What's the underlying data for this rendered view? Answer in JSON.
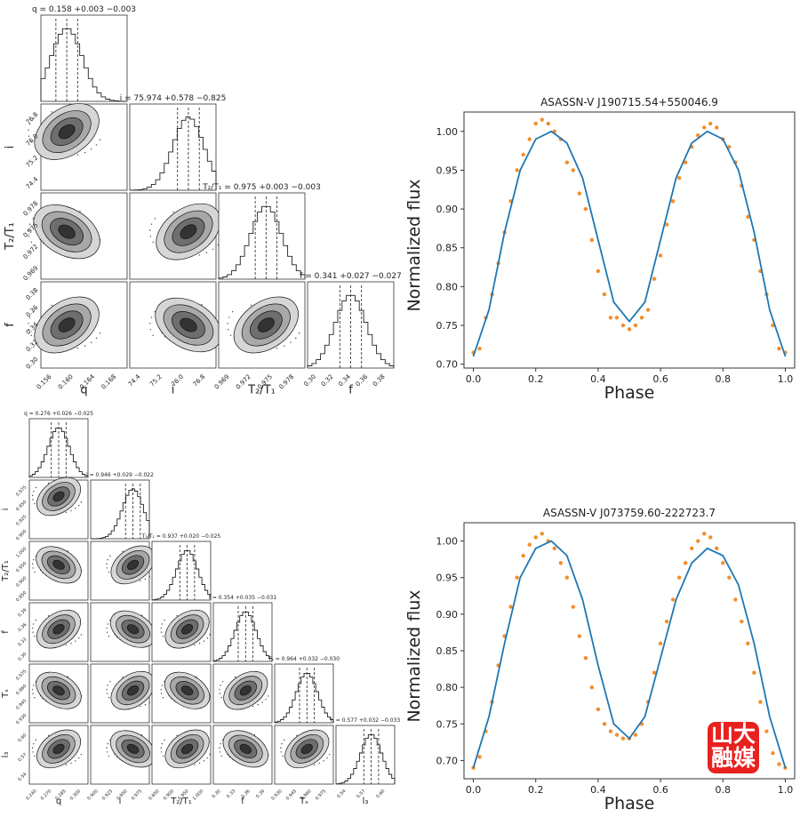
{
  "corners": [
    {
      "params": [
        "q",
        "i",
        "T2/T1",
        "f"
      ],
      "axis_labels": [
        "q",
        "i",
        "T₂/T₁",
        "f"
      ],
      "titles": [
        "q = 0.158 +0.003 −0.003",
        "i = 75.974 +0.578 −0.825",
        "T₂/T₁ = 0.975 +0.003 −0.003",
        "f = 0.341 +0.027 −0.027"
      ],
      "ticks": [
        [
          "0.156",
          "0.160",
          "0.164",
          "0.168"
        ],
        [
          "74.4",
          "75.2",
          "76.0",
          "76.8"
        ],
        [
          "0.969",
          "0.972",
          "0.975",
          "0.978"
        ],
        [
          "0.30",
          "0.32",
          "0.34",
          "0.36",
          "0.38"
        ]
      ],
      "centers": [
        0.3,
        0.68,
        0.55,
        0.5
      ]
    },
    {
      "params": [
        "q",
        "i",
        "T2/T1",
        "f",
        "Ts",
        "l3"
      ],
      "axis_labels": [
        "q",
        "i",
        "T₂/T₁",
        "f",
        "Tₛ",
        "l₃"
      ],
      "titles": [
        "q = 0.276 +0.026 −0.025",
        "i = 0.946 +0.029 −0.022",
        "T₂/T₁ = 0.937 +0.020 −0.025",
        "f = 0.354 +0.035 −0.031",
        "Tₛ = 0.964 +0.032 −0.030",
        "l₃ = 0.577 +0.032 −0.033"
      ],
      "ticks": [
        [
          "0.240",
          "0.270",
          "0.285",
          "0.300"
        ],
        [
          "0.900",
          "0.925",
          "0.950",
          "0.975"
        ],
        [
          "0.850",
          "0.900",
          "0.950",
          "1.000"
        ],
        [
          "0.30",
          "0.33",
          "0.36",
          "0.39"
        ],
        [
          "0.930",
          "0.945",
          "0.960",
          "0.975"
        ],
        [
          "0.54",
          "0.57",
          "0.60"
        ]
      ],
      "centers": [
        0.5,
        0.72,
        0.6,
        0.55,
        0.55,
        0.6
      ]
    }
  ],
  "chart_data": [
    {
      "type": "scatter",
      "title": "ASASSN-V J190715.54+550046.9",
      "xlabel": "Phase",
      "ylabel": "Normalized flux",
      "xlim": [
        -0.03,
        1.03
      ],
      "ylim": [
        0.695,
        1.025
      ],
      "xticks": [
        "0.0",
        "0.2",
        "0.4",
        "0.6",
        "0.8",
        "1.0"
      ],
      "yticks": [
        "0.70",
        "0.75",
        "0.80",
        "0.85",
        "0.90",
        "0.95",
        "1.00"
      ],
      "series": [
        {
          "kind": "points",
          "color": "#f28e2b",
          "x": [
            0.0,
            0.02,
            0.04,
            0.06,
            0.08,
            0.1,
            0.12,
            0.14,
            0.16,
            0.18,
            0.2,
            0.22,
            0.24,
            0.26,
            0.28,
            0.3,
            0.32,
            0.34,
            0.36,
            0.38,
            0.4,
            0.42,
            0.44,
            0.46,
            0.48,
            0.5,
            0.52,
            0.54,
            0.56,
            0.58,
            0.6,
            0.62,
            0.64,
            0.66,
            0.68,
            0.7,
            0.72,
            0.74,
            0.76,
            0.78,
            0.8,
            0.82,
            0.84,
            0.86,
            0.88,
            0.9,
            0.92,
            0.94,
            0.96,
            0.98,
            1.0
          ],
          "y": [
            0.715,
            0.72,
            0.76,
            0.79,
            0.83,
            0.87,
            0.91,
            0.95,
            0.97,
            0.99,
            1.01,
            1.015,
            1.01,
            1.0,
            0.99,
            0.96,
            0.95,
            0.92,
            0.9,
            0.86,
            0.82,
            0.79,
            0.76,
            0.76,
            0.75,
            0.745,
            0.75,
            0.76,
            0.77,
            0.81,
            0.84,
            0.88,
            0.91,
            0.94,
            0.96,
            0.98,
            0.995,
            1.005,
            1.01,
            1.005,
            0.99,
            0.98,
            0.96,
            0.93,
            0.89,
            0.86,
            0.82,
            0.79,
            0.75,
            0.72,
            0.715
          ]
        },
        {
          "kind": "model",
          "color": "#1f77b4",
          "x": [
            0.0,
            0.05,
            0.1,
            0.15,
            0.2,
            0.25,
            0.3,
            0.35,
            0.4,
            0.45,
            0.5,
            0.55,
            0.6,
            0.65,
            0.7,
            0.75,
            0.8,
            0.85,
            0.9,
            0.95,
            1.0
          ],
          "y": [
            0.71,
            0.77,
            0.87,
            0.95,
            0.99,
            1.0,
            0.985,
            0.94,
            0.86,
            0.78,
            0.755,
            0.78,
            0.86,
            0.94,
            0.985,
            1.0,
            0.99,
            0.95,
            0.87,
            0.77,
            0.71
          ]
        }
      ]
    },
    {
      "type": "scatter",
      "title": "ASASSN-V J073759.60-222723.7",
      "xlabel": "Phase",
      "ylabel": "Normalized flux",
      "xlim": [
        -0.03,
        1.03
      ],
      "ylim": [
        0.675,
        1.025
      ],
      "xticks": [
        "0.0",
        "0.2",
        "0.4",
        "0.6",
        "0.8",
        "1.0"
      ],
      "yticks": [
        "0.70",
        "0.75",
        "0.80",
        "0.85",
        "0.90",
        "0.95",
        "1.00"
      ],
      "series": [
        {
          "kind": "points",
          "color": "#f28e2b",
          "x": [
            0.0,
            0.02,
            0.04,
            0.06,
            0.08,
            0.1,
            0.12,
            0.14,
            0.16,
            0.18,
            0.2,
            0.22,
            0.24,
            0.26,
            0.28,
            0.3,
            0.32,
            0.34,
            0.36,
            0.38,
            0.4,
            0.42,
            0.44,
            0.46,
            0.48,
            0.5,
            0.52,
            0.54,
            0.56,
            0.58,
            0.6,
            0.62,
            0.64,
            0.66,
            0.68,
            0.7,
            0.72,
            0.74,
            0.76,
            0.78,
            0.8,
            0.82,
            0.84,
            0.86,
            0.88,
            0.9,
            0.92,
            0.94,
            0.96,
            0.98,
            1.0
          ],
          "y": [
            0.69,
            0.705,
            0.74,
            0.78,
            0.83,
            0.87,
            0.91,
            0.95,
            0.98,
            0.995,
            1.005,
            1.01,
            1.0,
            0.99,
            0.97,
            0.95,
            0.91,
            0.87,
            0.84,
            0.8,
            0.77,
            0.75,
            0.74,
            0.735,
            0.73,
            0.73,
            0.735,
            0.75,
            0.78,
            0.82,
            0.86,
            0.89,
            0.92,
            0.95,
            0.97,
            0.99,
            1.0,
            1.01,
            1.005,
            0.99,
            0.97,
            0.95,
            0.92,
            0.89,
            0.86,
            0.82,
            0.78,
            0.74,
            0.71,
            0.695,
            0.69
          ]
        },
        {
          "kind": "model",
          "color": "#1f77b4",
          "x": [
            0.0,
            0.05,
            0.1,
            0.15,
            0.2,
            0.25,
            0.3,
            0.35,
            0.4,
            0.45,
            0.5,
            0.55,
            0.6,
            0.65,
            0.7,
            0.75,
            0.8,
            0.85,
            0.9,
            0.95,
            1.0
          ],
          "y": [
            0.69,
            0.76,
            0.86,
            0.95,
            0.99,
            1.0,
            0.98,
            0.92,
            0.83,
            0.75,
            0.73,
            0.76,
            0.84,
            0.92,
            0.97,
            0.99,
            0.98,
            0.94,
            0.86,
            0.76,
            0.69
          ]
        }
      ]
    }
  ],
  "logo": {
    "line1": "山大",
    "line2": "融媒",
    "color": "#e8211f"
  }
}
